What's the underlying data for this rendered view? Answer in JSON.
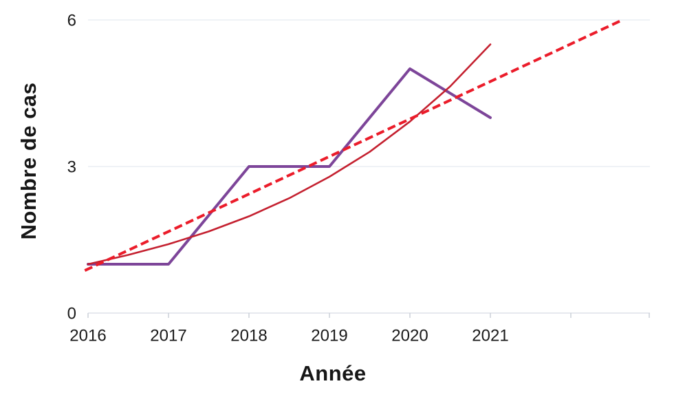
{
  "chart_data": {
    "type": "line",
    "title": "",
    "xlabel": "Année",
    "ylabel": "Nombre de cas",
    "grid": "horizontal",
    "legend": "none",
    "xlim": [
      2015.9,
      2023
    ],
    "ylim": [
      0,
      6
    ],
    "categories": [
      2016,
      2017,
      2018,
      2019,
      2020,
      2021
    ],
    "yticks": [
      {
        "value": 0,
        "label": "0"
      },
      {
        "value": 3,
        "label": "3"
      },
      {
        "value": 6,
        "label": "6"
      }
    ],
    "xticks": [
      {
        "year": 2016,
        "label": "2016"
      },
      {
        "year": 2017,
        "label": "2017"
      },
      {
        "year": 2018,
        "label": "2018"
      },
      {
        "year": 2019,
        "label": "2019"
      },
      {
        "year": 2020,
        "label": "2020"
      },
      {
        "year": 2021,
        "label": "2021"
      },
      {
        "year": 2022,
        "label": ""
      },
      {
        "year": 2023,
        "label": ""
      }
    ],
    "series": [
      {
        "id": "observed-cases",
        "color": "#7D4599",
        "width": 4,
        "dash": "",
        "points": [
          [
            2016,
            1
          ],
          [
            2017,
            1
          ],
          [
            2018,
            3
          ],
          [
            2019,
            3
          ],
          [
            2020,
            5
          ],
          [
            2021,
            4
          ]
        ]
      },
      {
        "id": "exponential-trend",
        "color": "#C4202F",
        "width": 2.6,
        "dash": "",
        "points": [
          [
            2016,
            1.0
          ],
          [
            2016.5,
            1.19
          ],
          [
            2017,
            1.41
          ],
          [
            2017.5,
            1.67
          ],
          [
            2018,
            1.98
          ],
          [
            2018.5,
            2.35
          ],
          [
            2019,
            2.79
          ],
          [
            2019.5,
            3.3
          ],
          [
            2020,
            3.92
          ],
          [
            2020.5,
            4.64
          ],
          [
            2021,
            5.5
          ]
        ]
      },
      {
        "id": "linear-trend",
        "color": "#EB1C2A",
        "width": 4,
        "dash": "12 6",
        "points": [
          [
            2015.96,
            0.87
          ],
          [
            2022.64,
            6.0
          ]
        ]
      }
    ]
  }
}
